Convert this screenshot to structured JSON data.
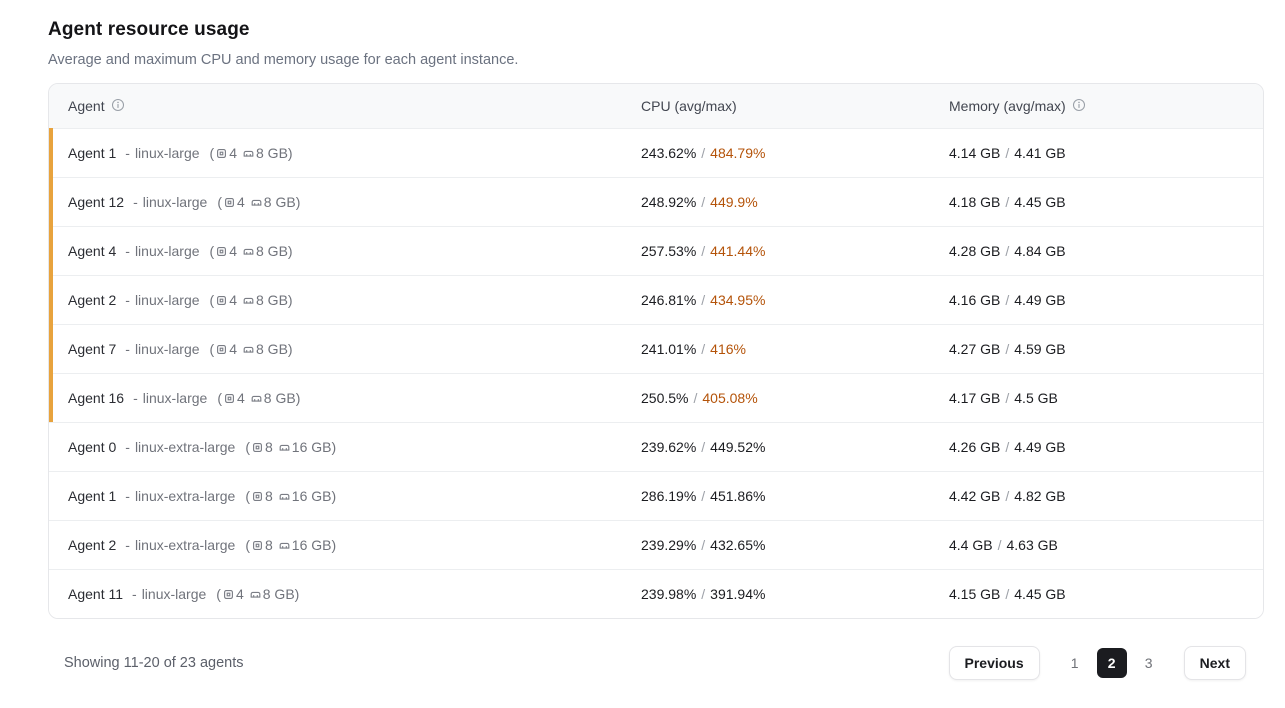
{
  "page": {
    "title": "Agent resource usage",
    "subtitle": "Average and maximum CPU and memory usage for each agent instance."
  },
  "colors": {
    "accent_amber_bar": "#E8A33D",
    "cpu_max_warning_text": "#B45309",
    "active_page_bg": "#1B1C20"
  },
  "table": {
    "columns": {
      "agent": "Agent",
      "cpu": "CPU (avg/max)",
      "memory": "Memory (avg/max)"
    },
    "format": {
      "dash": "-",
      "open_paren": "(",
      "close_paren": ")",
      "value_separator": "/"
    },
    "rows": [
      {
        "name": "Agent 1",
        "machine_type": "linux-large",
        "cpu_count": "4",
        "memory_size": "8 GB",
        "cpu_avg": "243.62%",
        "cpu_max": "484.79%",
        "mem_avg": "4.14 GB",
        "mem_max": "4.41 GB",
        "flagged": true
      },
      {
        "name": "Agent 12",
        "machine_type": "linux-large",
        "cpu_count": "4",
        "memory_size": "8 GB",
        "cpu_avg": "248.92%",
        "cpu_max": "449.9%",
        "mem_avg": "4.18 GB",
        "mem_max": "4.45 GB",
        "flagged": true
      },
      {
        "name": "Agent 4",
        "machine_type": "linux-large",
        "cpu_count": "4",
        "memory_size": "8 GB",
        "cpu_avg": "257.53%",
        "cpu_max": "441.44%",
        "mem_avg": "4.28 GB",
        "mem_max": "4.84 GB",
        "flagged": true
      },
      {
        "name": "Agent 2",
        "machine_type": "linux-large",
        "cpu_count": "4",
        "memory_size": "8 GB",
        "cpu_avg": "246.81%",
        "cpu_max": "434.95%",
        "mem_avg": "4.16 GB",
        "mem_max": "4.49 GB",
        "flagged": true
      },
      {
        "name": "Agent 7",
        "machine_type": "linux-large",
        "cpu_count": "4",
        "memory_size": "8 GB",
        "cpu_avg": "241.01%",
        "cpu_max": "416%",
        "mem_avg": "4.27 GB",
        "mem_max": "4.59 GB",
        "flagged": true
      },
      {
        "name": "Agent 16",
        "machine_type": "linux-large",
        "cpu_count": "4",
        "memory_size": "8 GB",
        "cpu_avg": "250.5%",
        "cpu_max": "405.08%",
        "mem_avg": "4.17 GB",
        "mem_max": "4.5 GB",
        "flagged": true
      },
      {
        "name": "Agent 0",
        "machine_type": "linux-extra-large",
        "cpu_count": "8",
        "memory_size": "16 GB",
        "cpu_avg": "239.62%",
        "cpu_max": "449.52%",
        "mem_avg": "4.26 GB",
        "mem_max": "4.49 GB",
        "flagged": false
      },
      {
        "name": "Agent 1",
        "machine_type": "linux-extra-large",
        "cpu_count": "8",
        "memory_size": "16 GB",
        "cpu_avg": "286.19%",
        "cpu_max": "451.86%",
        "mem_avg": "4.42 GB",
        "mem_max": "4.82 GB",
        "flagged": false
      },
      {
        "name": "Agent 2",
        "machine_type": "linux-extra-large",
        "cpu_count": "8",
        "memory_size": "16 GB",
        "cpu_avg": "239.29%",
        "cpu_max": "432.65%",
        "mem_avg": "4.4 GB",
        "mem_max": "4.63 GB",
        "flagged": false
      },
      {
        "name": "Agent 11",
        "machine_type": "linux-large",
        "cpu_count": "4",
        "memory_size": "8 GB",
        "cpu_avg": "239.98%",
        "cpu_max": "391.94%",
        "mem_avg": "4.15 GB",
        "mem_max": "4.45 GB",
        "flagged": false
      }
    ]
  },
  "footer": {
    "summary": "Showing 11-20 of 23 agents",
    "pagination": {
      "previous_label": "Previous",
      "pages": [
        "1",
        "2",
        "3"
      ],
      "active_page": "2",
      "next_label": "Next"
    }
  }
}
